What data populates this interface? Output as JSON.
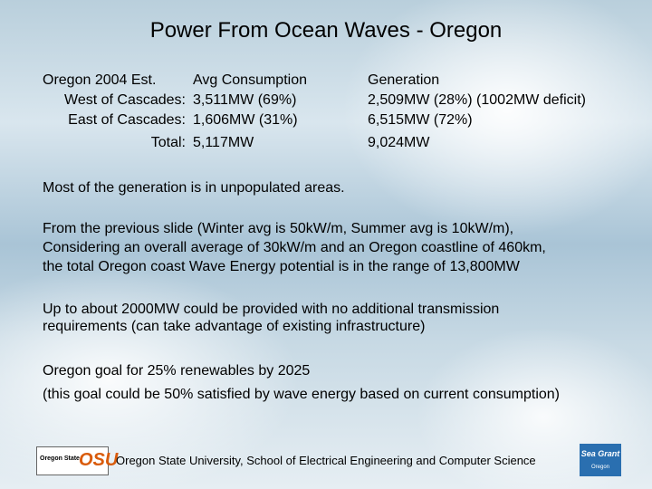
{
  "title": "Power From Ocean Waves - Oregon",
  "table": {
    "rows": [
      [
        "Oregon 2004 Est.",
        "Avg Consumption",
        "Generation"
      ],
      [
        "West of Cascades:",
        "3,511MW (69%)",
        "2,509MW (28%) (1002MW deficit)"
      ],
      [
        "East of Cascades:",
        "1,606MW (31%)",
        "6,515MW (72%)"
      ],
      [
        "Total:",
        "5,117MW",
        "9,024MW"
      ]
    ]
  },
  "paragraphs": [
    [
      "Most of the generation is in unpopulated areas."
    ],
    [
      "From the previous slide (Winter avg is 50kW/m, Summer avg is 10kW/m),",
      "Considering an overall average of 30kW/m and an Oregon coastline of 460km,",
      "the total Oregon coast Wave Energy potential is in the range of 13,800MW"
    ],
    [
      "Up to about 2000MW could be provided with no additional transmission",
      "requirements (can take advantage of existing infrastructure)"
    ],
    [
      "Oregon goal for 25% renewables by 2025",
      "(this goal could be 50% satisfied by wave energy based on current consumption)"
    ]
  ],
  "footer": {
    "text": "Oregon State University, School of Electrical Engineering and Computer Science",
    "left_logo": {
      "name": "Oregon State",
      "mark": "OSU"
    },
    "right_logo": {
      "name": "Sea Grant",
      "sub": "Oregon"
    }
  }
}
